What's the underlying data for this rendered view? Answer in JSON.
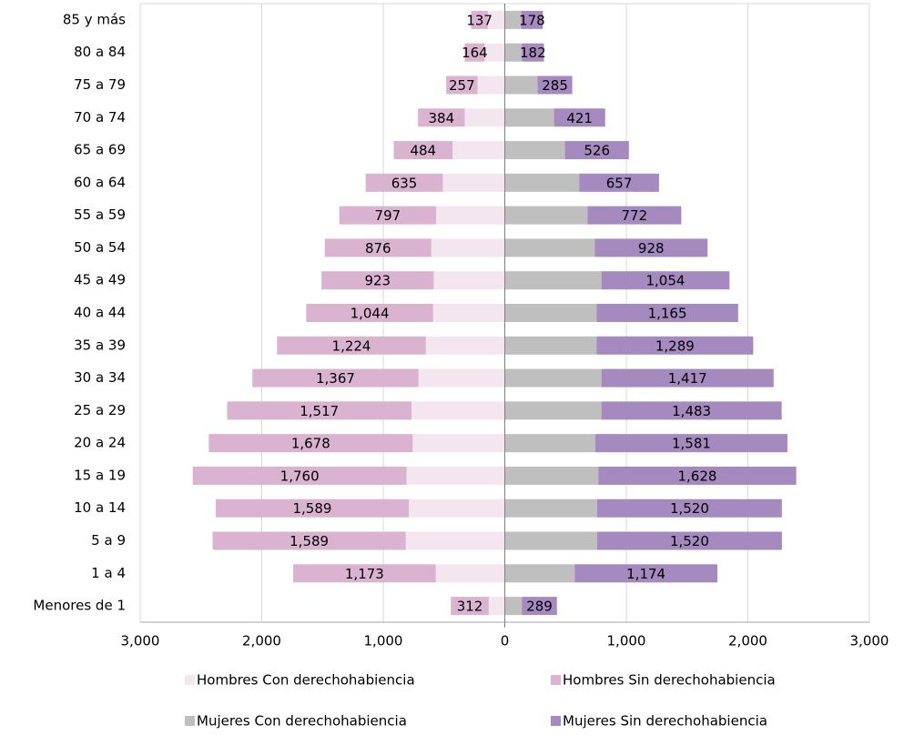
{
  "chart_data": {
    "type": "bar",
    "orientation": "horizontal",
    "stacked": true,
    "categories": [
      "Menores de 1",
      "1 a 4",
      "5 a 9",
      "10 a 14",
      "15 a 19",
      "20 a 24",
      "25 a 29",
      "30 a 34",
      "35 a 39",
      "40 a 44",
      "45 a 49",
      "50 a 54",
      "55 a 59",
      "60 a 64",
      "65 a 69",
      "70 a 74",
      "75 a 79",
      "80 a 84",
      "85 y más"
    ],
    "series": [
      {
        "name": "Hombres Con derechohabiencia",
        "color": "#f3e6ef",
        "values": [
          -132,
          -568,
          -815,
          -790,
          -808,
          -758,
          -768,
          -710,
          -650,
          -590,
          -585,
          -605,
          -565,
          -510,
          -430,
          -330,
          -225,
          -166,
          -140
        ]
      },
      {
        "name": "Hombres Sin derechohabiencia",
        "color": "#d9b3d0",
        "values": [
          -312,
          -1173,
          -1589,
          -1589,
          -1760,
          -1678,
          -1517,
          -1367,
          -1224,
          -1044,
          -923,
          -876,
          -797,
          -635,
          -484,
          -384,
          -257,
          -164,
          -137
        ],
        "value_labels": [
          "312",
          "1,173",
          "1,589",
          "1,589",
          "1,760",
          "1,678",
          "1,517",
          "1,367",
          "1,224",
          "1,044",
          "923",
          "876",
          "797",
          "635",
          "484",
          "384",
          "257",
          "164",
          "137"
        ]
      },
      {
        "name": "Mujeres Con derechohabiencia",
        "color": "#bfbfbf",
        "values": [
          140,
          575,
          760,
          760,
          770,
          745,
          795,
          795,
          755,
          755,
          795,
          740,
          680,
          612,
          495,
          405,
          270,
          140,
          135
        ]
      },
      {
        "name": "Mujeres Sin derechohabiencia",
        "color": "#a48abf",
        "values": [
          289,
          1174,
          1520,
          1520,
          1628,
          1581,
          1483,
          1417,
          1289,
          1165,
          1054,
          928,
          772,
          657,
          526,
          421,
          285,
          182,
          178
        ],
        "value_labels": [
          "289",
          "1,174",
          "1,520",
          "1,520",
          "1,628",
          "1,581",
          "1,483",
          "1,417",
          "1,289",
          "1,165",
          "1,054",
          "928",
          "772",
          "657",
          "526",
          "421",
          "285",
          "182",
          "178"
        ]
      }
    ],
    "xlim": [
      -3000,
      3000
    ],
    "xticks": [
      {
        "value": -3000,
        "label": "3,000"
      },
      {
        "value": -2000,
        "label": "2,000"
      },
      {
        "value": -1000,
        "label": "1,000"
      },
      0,
      {
        "value": 1000,
        "label": "1,000"
      },
      {
        "value": 2000,
        "label": "2,000"
      },
      {
        "value": 3000,
        "label": "3,000"
      }
    ],
    "grid": true,
    "legend": "bottom"
  }
}
